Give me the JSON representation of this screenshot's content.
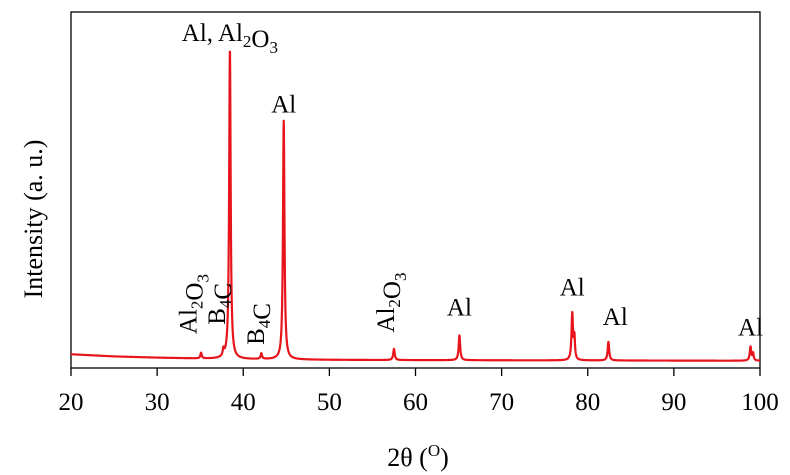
{
  "chart_data": {
    "type": "line",
    "title": "",
    "xlabel": "2θ (O)",
    "xlabel_parts": {
      "main": "2θ (",
      "sup": "O",
      "close": ")"
    },
    "ylabel": "Intensity (a. u.)",
    "xlim": [
      20,
      100
    ],
    "ylim": [
      0,
      100
    ],
    "y_tick_labels_shown": false,
    "grid": false,
    "legend": "none",
    "line_color": "#e8141c",
    "x_ticks": [
      20,
      30,
      40,
      50,
      60,
      70,
      80,
      90,
      100
    ],
    "x_tick_labels": [
      "20",
      "30",
      "40",
      "50",
      "60",
      "70",
      "80",
      "90",
      "100"
    ],
    "series": [
      {
        "baseline": [
          {
            "x": 20,
            "y": 2.5
          },
          {
            "x": 25,
            "y": 1.8
          },
          {
            "x": 30,
            "y": 1.4
          },
          {
            "x": 35,
            "y": 1.1
          },
          {
            "x": 40,
            "y": 0.9
          },
          {
            "x": 50,
            "y": 0.7
          },
          {
            "x": 60,
            "y": 0.6
          },
          {
            "x": 80,
            "y": 0.5
          },
          {
            "x": 100,
            "y": 0.4
          }
        ],
        "peaks": [
          {
            "x": 35.1,
            "height": 1.8,
            "width": 0.12
          },
          {
            "x": 37.7,
            "height": 2.2,
            "width": 0.12
          },
          {
            "x": 38.45,
            "height": 100,
            "width": 0.13
          },
          {
            "x": 42.1,
            "height": 1.8,
            "width": 0.12
          },
          {
            "x": 44.7,
            "height": 77,
            "width": 0.13
          },
          {
            "x": 57.5,
            "height": 3.6,
            "width": 0.13
          },
          {
            "x": 65.1,
            "height": 8,
            "width": 0.13
          },
          {
            "x": 78.2,
            "height": 15,
            "width": 0.13
          },
          {
            "x": 78.45,
            "height": 7,
            "width": 0.1
          },
          {
            "x": 82.4,
            "height": 6,
            "width": 0.13
          },
          {
            "x": 98.9,
            "height": 4.5,
            "width": 0.13
          },
          {
            "x": 99.2,
            "height": 2.3,
            "width": 0.1
          }
        ]
      }
    ],
    "annotations": [
      {
        "id": "ann-al-al2o3-main",
        "x": 38.45,
        "y": 103.5,
        "rotate": false,
        "parts": [
          {
            "t": "Al, Al"
          },
          {
            "t": "2",
            "sub": true
          },
          {
            "t": "O"
          },
          {
            "t": "3",
            "sub": true
          }
        ]
      },
      {
        "id": "ann-al-44",
        "x": 44.7,
        "y": 80.5,
        "rotate": false,
        "parts": [
          {
            "t": "Al"
          }
        ]
      },
      {
        "id": "ann-al2o3-35",
        "x": 34.6,
        "y": 9,
        "rotate": true,
        "parts": [
          {
            "t": "Al"
          },
          {
            "t": "2",
            "sub": true
          },
          {
            "t": "O"
          },
          {
            "t": "3",
            "sub": true
          }
        ]
      },
      {
        "id": "ann-b4c-37",
        "x": 37.9,
        "y": 12,
        "rotate": true,
        "parts": [
          {
            "t": "B"
          },
          {
            "t": "4",
            "sub": true
          },
          {
            "t": "C"
          }
        ]
      },
      {
        "id": "ann-b4c-42",
        "x": 42.4,
        "y": 5.5,
        "rotate": true,
        "parts": [
          {
            "t": "B"
          },
          {
            "t": "4",
            "sub": true
          },
          {
            "t": "C"
          }
        ]
      },
      {
        "id": "ann-al2o3-57",
        "x": 57.5,
        "y": 9.5,
        "rotate": true,
        "parts": [
          {
            "t": "Al"
          },
          {
            "t": "2",
            "sub": true
          },
          {
            "t": "O"
          },
          {
            "t": "3",
            "sub": true
          }
        ]
      },
      {
        "id": "ann-al-65",
        "x": 65.1,
        "y": 15,
        "rotate": false,
        "parts": [
          {
            "t": "Al"
          }
        ]
      },
      {
        "id": "ann-al-78",
        "x": 78.2,
        "y": 21.5,
        "rotate": false,
        "parts": [
          {
            "t": "Al"
          }
        ]
      },
      {
        "id": "ann-al-82",
        "x": 83.2,
        "y": 12,
        "rotate": false,
        "parts": [
          {
            "t": "Al"
          }
        ]
      },
      {
        "id": "ann-al-99",
        "x": 98.9,
        "y": 8.5,
        "rotate": false,
        "parts": [
          {
            "t": "Al"
          }
        ]
      }
    ]
  }
}
